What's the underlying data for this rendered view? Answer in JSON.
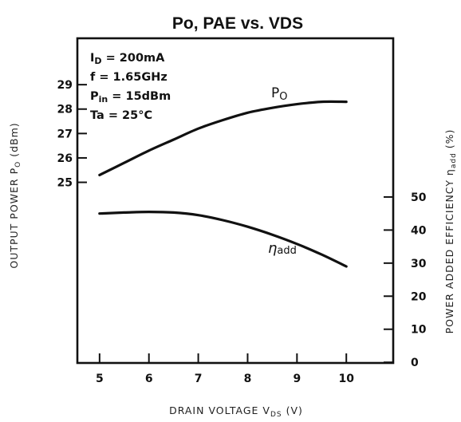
{
  "chart_data": {
    "type": "line",
    "title": "Po, PAE vs. VDS",
    "xlabel": "DRAIN VOLTAGE V",
    "xlabel_sub": "DS",
    "xlabel_unit": " (V)",
    "ylabel_left": "OUTPUT POWER P",
    "ylabel_left_sub": "O",
    "ylabel_left_unit": " (dBm)",
    "ylabel_right": "POWER ADDED EFFICIENCY η",
    "ylabel_right_sub": "add",
    "ylabel_right_unit": " (%)",
    "x_ticks": [
      5,
      6,
      7,
      8,
      9,
      10
    ],
    "xlim": [
      4.55,
      10.95
    ],
    "y_left_ticks": [
      25,
      26,
      27,
      28,
      29
    ],
    "y_left_lim": [
      17.6,
      30.9
    ],
    "y_right_ticks": [
      0,
      10,
      20,
      30,
      40,
      50
    ],
    "y_right_lim": [
      -0.2,
      98
    ],
    "grid": false,
    "conditions": [
      "I_D = 200mA",
      "f = 1.65GHz",
      "P_in = 15dBm",
      "Ta = 25°C"
    ],
    "conditions_parts": [
      {
        "main": "I",
        "sub": "D",
        "rest": " = 200mA"
      },
      {
        "main": "f = 1.65GHz",
        "sub": "",
        "rest": ""
      },
      {
        "main": "P",
        "sub": "in",
        "rest": " = 15dBm"
      },
      {
        "main": "Ta = 25°C",
        "sub": "",
        "rest": ""
      }
    ],
    "series": [
      {
        "name": "Po",
        "label_main": "P",
        "label_sub": "O",
        "axis": "left",
        "x": [
          5,
          5.5,
          6,
          6.5,
          7,
          7.5,
          8,
          8.5,
          9,
          9.5,
          10
        ],
        "y": [
          25.3,
          25.8,
          26.3,
          26.75,
          27.2,
          27.55,
          27.85,
          28.05,
          28.2,
          28.3,
          28.3
        ]
      },
      {
        "name": "ηadd",
        "label_main": "η",
        "label_sub": "add",
        "axis": "right",
        "x": [
          5,
          5.5,
          6,
          6.5,
          7,
          7.5,
          8,
          8.5,
          9,
          9.5,
          10
        ],
        "y": [
          45,
          45.3,
          45.5,
          45.3,
          44.5,
          43,
          41,
          38.6,
          35.8,
          32.6,
          29
        ]
      }
    ]
  }
}
